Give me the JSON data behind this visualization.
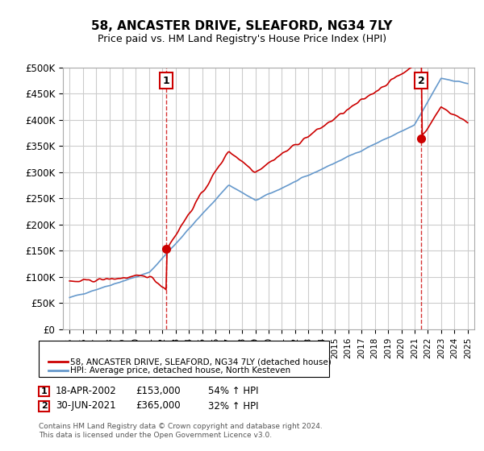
{
  "title": "58, ANCASTER DRIVE, SLEAFORD, NG34 7LY",
  "subtitle": "Price paid vs. HM Land Registry's House Price Index (HPI)",
  "ylabel_ticks": [
    "£0",
    "£50K",
    "£100K",
    "£150K",
    "£200K",
    "£250K",
    "£300K",
    "£350K",
    "£400K",
    "£450K",
    "£500K"
  ],
  "ytick_values": [
    0,
    50000,
    100000,
    150000,
    200000,
    250000,
    300000,
    350000,
    400000,
    450000,
    500000
  ],
  "line1_color": "#cc0000",
  "line2_color": "#6699cc",
  "vline_color": "#cc0000",
  "annotation_box_color": "#cc0000",
  "sale1": {
    "date_num": 2002.3,
    "price": 153000,
    "label": "1"
  },
  "sale2": {
    "date_num": 2021.5,
    "price": 365000,
    "label": "2"
  },
  "legend1": "58, ANCASTER DRIVE, SLEAFORD, NG34 7LY (detached house)",
  "legend2": "HPI: Average price, detached house, North Kesteven",
  "note1_label": "1",
  "note1_date": "18-APR-2002",
  "note1_price": "£153,000",
  "note1_hpi": "54% ↑ HPI",
  "note2_label": "2",
  "note2_date": "30-JUN-2021",
  "note2_price": "£365,000",
  "note2_hpi": "32% ↑ HPI",
  "footer": "Contains HM Land Registry data © Crown copyright and database right 2024.\nThis data is licensed under the Open Government Licence v3.0.",
  "background_color": "#ffffff",
  "grid_color": "#cccccc"
}
